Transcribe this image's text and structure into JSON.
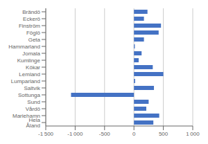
{
  "chart_data": {
    "type": "bar",
    "orientation": "horizontal",
    "categories": [
      "Brändö",
      "Eckerö",
      "Finström",
      "Föglö",
      "Geta",
      "Hammarland",
      "Jomala",
      "Kumlinge",
      "Kökar",
      "Lemland",
      "Lumparland",
      "Saltvik",
      "Sottunga",
      "Sund",
      "Vårdö",
      "Mariehamn",
      "Hela Åland"
    ],
    "values": [
      230,
      170,
      460,
      420,
      170,
      15,
      130,
      80,
      320,
      500,
      20,
      340,
      -1070,
      250,
      210,
      430,
      330
    ],
    "color": "#4472C4",
    "xlim": [
      -1500,
      1000
    ],
    "xticks": [
      {
        "value": -1500,
        "label": "-1 500"
      },
      {
        "value": -1000,
        "label": "-1 000"
      },
      -500,
      0,
      500,
      {
        "value": 1000,
        "label": "1 000"
      }
    ],
    "grid": true
  }
}
